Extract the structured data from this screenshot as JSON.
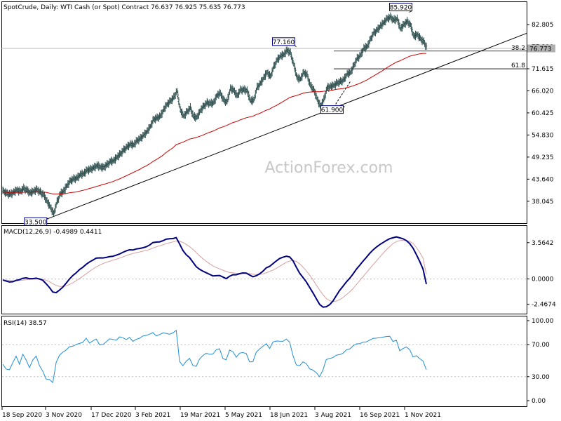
{
  "colors": {
    "price_bars": "#2f4f4f",
    "ma": "#cc0000",
    "macd": "#000080",
    "signal": "#d8a0a0",
    "rsi": "#1e8fd6",
    "grid": "#bdbdbd",
    "trendline": "#000000",
    "box_border": "#000080"
  },
  "chart_data": [
    {
      "type": "ohlc",
      "title": "SpotCrude, Daily:  WTI Cash (or Spot) Contract  76.637 76.925 75.635 76.773",
      "watermark": "ActionForex.com",
      "y_ticks": [
        "82.805",
        "77.210",
        "71.615",
        "66.020",
        "60.425",
        "54.830",
        "49.235",
        "43.640",
        "38.045"
      ],
      "y_tick_values": [
        82.805,
        77.21,
        71.615,
        66.02,
        60.425,
        54.83,
        49.235,
        43.64,
        38.045
      ],
      "ylim": [
        32.5,
        88.5
      ],
      "current_price": "76.773",
      "x_ticks": [
        "18 Sep 2020",
        "3 Nov 2020",
        "17 Dec 2020",
        "3 Feb 2021",
        "19 Mar 2021",
        "5 May 2021",
        "18 Jun 2021",
        "3 Aug 2021",
        "16 Sep 2021",
        "1 Nov 2021"
      ],
      "annotations": [
        {
          "text": "33.500",
          "date": "2020-11-02",
          "value": 33.5
        },
        {
          "text": "77.160",
          "date": "2021-07-06",
          "value": 77.16
        },
        {
          "text": "61.900",
          "date": "2021-08-23",
          "value": 61.9
        },
        {
          "text": "85.920",
          "date": "2021-10-26",
          "value": 85.92
        }
      ],
      "fibonacci": [
        {
          "label": "38.2",
          "value": 76.1
        },
        {
          "label": "61.8",
          "value": 71.6
        }
      ],
      "series": [
        {
          "name": "Close",
          "values": [
            40.6,
            40.0,
            39.8,
            40.3,
            40.9,
            40.5,
            41.3,
            40.8,
            40.1,
            40.6,
            41.0,
            40.3,
            39.7,
            38.0,
            36.6,
            34.9,
            37.8,
            39.9,
            40.6,
            42.0,
            43.2,
            43.7,
            43.9,
            44.8,
            45.0,
            45.9,
            46.1,
            46.5,
            47.1,
            46.7,
            46.6,
            47.3,
            48.1,
            48.3,
            49.2,
            50.0,
            51.0,
            51.8,
            52.5,
            52.3,
            53.4,
            53.9,
            54.8,
            55.7,
            57.0,
            58.8,
            59.1,
            59.6,
            61.2,
            62.6,
            63.4,
            64.3,
            66.0,
            61.1,
            59.6,
            60.7,
            61.7,
            59.4,
            59.3,
            61.0,
            62.1,
            63.0,
            62.8,
            63.0,
            64.9,
            65.4,
            63.6,
            63.2,
            66.6,
            66.2,
            64.7,
            66.2,
            66.3,
            66.1,
            63.5,
            63.6,
            66.9,
            67.9,
            69.3,
            70.7,
            69.6,
            72.1,
            73.8,
            74.8,
            75.2,
            76.3,
            75.6,
            72.7,
            69.3,
            69.0,
            70.7,
            70.0,
            67.3,
            66.3,
            64.0,
            62.1,
            63.7,
            66.8,
            67.1,
            67.4,
            68.0,
            68.3,
            68.8,
            70.3,
            70.6,
            72.4,
            74.2,
            75.0,
            76.8,
            77.2,
            79.1,
            80.7,
            81.4,
            82.4,
            83.3,
            84.3,
            84.7,
            83.9,
            84.3,
            81.7,
            82.8,
            83.6,
            82.7,
            79.8,
            80.3,
            79.2,
            78.4,
            76.77
          ]
        },
        {
          "name": "MA",
          "values": [
            40.4,
            40.3,
            40.3,
            40.3,
            40.3,
            40.3,
            40.3,
            40.4,
            40.4,
            40.4,
            40.5,
            40.4,
            40.4,
            40.3,
            40.1,
            39.9,
            39.9,
            39.9,
            39.9,
            40.0,
            40.2,
            40.3,
            40.4,
            40.6,
            40.8,
            41.0,
            41.3,
            41.5,
            41.8,
            42.0,
            42.3,
            42.5,
            42.8,
            43.0,
            43.4,
            43.7,
            44.1,
            44.5,
            44.9,
            45.3,
            45.7,
            46.1,
            46.6,
            47.0,
            47.5,
            48.1,
            48.6,
            49.1,
            49.7,
            50.4,
            51.0,
            51.6,
            52.4,
            52.7,
            53.0,
            53.4,
            53.8,
            54.0,
            54.2,
            54.5,
            54.8,
            55.2,
            55.5,
            55.8,
            56.2,
            56.6,
            56.9,
            57.2,
            57.6,
            58.0,
            58.2,
            58.6,
            58.9,
            59.2,
            59.4,
            59.6,
            60.0,
            60.3,
            60.7,
            61.1,
            61.4,
            61.9,
            62.3,
            62.8,
            63.3,
            63.8,
            64.3,
            64.6,
            64.8,
            65.1,
            65.4,
            65.6,
            65.7,
            65.8,
            65.8,
            65.8,
            65.9,
            66.0,
            66.1,
            66.2,
            66.4,
            66.5,
            66.6,
            66.8,
            67.0,
            67.3,
            67.6,
            67.9,
            68.3,
            68.7,
            69.2,
            69.7,
            70.2,
            70.7,
            71.2,
            71.8,
            72.3,
            72.8,
            73.3,
            73.6,
            74.0,
            74.4,
            74.8,
            75.0,
            75.2,
            75.4,
            75.5,
            75.5
          ]
        }
      ]
    },
    {
      "type": "line",
      "title": "MACD(12,26,9) -0.4989 0.4411",
      "y_ticks": [
        "3.5642",
        "0.0000",
        "-2.4674"
      ],
      "y_tick_values": [
        3.5642,
        0.0,
        -2.4674
      ],
      "ylim": [
        -3.4,
        5.2
      ],
      "series": [
        {
          "name": "MACD",
          "values": [
            -0.09,
            -0.21,
            -0.3,
            -0.27,
            -0.14,
            -0.07,
            0.07,
            0.11,
            0.03,
            0.03,
            0.08,
            0.0,
            -0.13,
            -0.47,
            -0.85,
            -1.28,
            -1.34,
            -1.09,
            -0.8,
            -0.41,
            0.0,
            0.34,
            0.6,
            0.92,
            1.15,
            1.44,
            1.67,
            1.85,
            2.04,
            2.07,
            2.06,
            2.11,
            2.19,
            2.22,
            2.33,
            2.45,
            2.61,
            2.75,
            2.86,
            2.84,
            2.94,
            2.99,
            3.06,
            3.16,
            3.33,
            3.57,
            3.62,
            3.64,
            3.75,
            3.9,
            3.94,
            3.96,
            4.05,
            3.43,
            2.8,
            2.37,
            2.1,
            1.65,
            1.21,
            0.95,
            0.76,
            0.61,
            0.45,
            0.3,
            0.32,
            0.34,
            0.19,
            0.03,
            0.27,
            0.42,
            0.41,
            0.52,
            0.59,
            0.58,
            0.39,
            0.22,
            0.32,
            0.5,
            0.76,
            1.09,
            1.24,
            1.5,
            1.77,
            2.01,
            2.13,
            2.23,
            2.16,
            1.79,
            1.16,
            0.57,
            0.15,
            -0.28,
            -0.82,
            -1.36,
            -1.94,
            -2.49,
            -2.76,
            -2.72,
            -2.52,
            -2.16,
            -1.63,
            -1.13,
            -0.72,
            -0.29,
            0.06,
            0.49,
            0.95,
            1.34,
            1.74,
            2.11,
            2.5,
            2.84,
            3.12,
            3.36,
            3.57,
            3.77,
            3.95,
            4.04,
            4.13,
            4.03,
            3.94,
            3.76,
            3.47,
            3.02,
            2.4,
            1.72,
            0.98,
            -0.5
          ]
        },
        {
          "name": "Signal",
          "values": [
            -0.09,
            -0.11,
            -0.15,
            -0.17,
            -0.17,
            -0.15,
            -0.11,
            -0.07,
            -0.05,
            -0.03,
            -0.01,
            -0.01,
            -0.04,
            -0.12,
            -0.26,
            -0.46,
            -0.64,
            -0.73,
            -0.74,
            -0.68,
            -0.54,
            -0.37,
            -0.17,
            0.05,
            0.27,
            0.51,
            0.75,
            0.97,
            1.18,
            1.36,
            1.5,
            1.62,
            1.74,
            1.84,
            1.94,
            2.05,
            2.16,
            2.29,
            2.41,
            2.5,
            2.58,
            2.65,
            2.72,
            2.8,
            2.9,
            3.03,
            3.15,
            3.25,
            3.35,
            3.46,
            3.55,
            3.63,
            3.71,
            3.7,
            3.59,
            3.4,
            3.18,
            2.9,
            2.59,
            2.27,
            1.98,
            1.73,
            1.5,
            1.29,
            1.12,
            0.99,
            0.86,
            0.73,
            0.63,
            0.6,
            0.56,
            0.55,
            0.54,
            0.54,
            0.53,
            0.46,
            0.43,
            0.44,
            0.51,
            0.6,
            0.74,
            0.86,
            1.04,
            1.24,
            1.44,
            1.64,
            1.76,
            1.81,
            1.72,
            1.49,
            1.17,
            0.79,
            0.38,
            -0.08,
            -0.6,
            -1.09,
            -1.55,
            -1.92,
            -2.13,
            -2.21,
            -2.17,
            -2.03,
            -1.82,
            -1.54,
            -1.27,
            -0.95,
            -0.55,
            -0.16,
            0.21,
            0.62,
            1.0,
            1.39,
            1.77,
            2.13,
            2.51,
            2.86,
            3.17,
            3.47,
            3.66,
            3.76,
            3.79,
            3.77,
            3.69,
            3.47,
            3.1,
            2.61,
            2.05,
            0.44
          ]
        }
      ]
    },
    {
      "type": "line",
      "title": "RSI(14) 38.57",
      "y_ticks": [
        "100.00",
        "70.00",
        "30.00",
        "0.00"
      ],
      "y_tick_values": [
        100,
        70,
        30,
        0
      ],
      "ylim": [
        0,
        100
      ],
      "levels": [
        70,
        30
      ],
      "series": [
        {
          "name": "RSI",
          "values": [
            45.6,
            39.4,
            38.7,
            47.6,
            55.6,
            45.4,
            58.1,
            50.9,
            41.3,
            50.9,
            55.6,
            43.8,
            36.6,
            27.0,
            26.3,
            22.6,
            47.8,
            56.8,
            60.6,
            63.4,
            67.5,
            68.2,
            70.1,
            71.6,
            72.9,
            78.1,
            72.0,
            74.7,
            77.2,
            69.9,
            70.2,
            73.4,
            77.3,
            76.6,
            75.4,
            79.7,
            78.7,
            76.3,
            79.1,
            74.0,
            76.7,
            78.1,
            80.9,
            81.6,
            83.1,
            85.1,
            81.0,
            82.5,
            84.7,
            84.1,
            83.1,
            84.7,
            87.9,
            49.0,
            43.7,
            49.4,
            52.9,
            43.9,
            43.0,
            52.1,
            56.5,
            59.3,
            57.9,
            58.3,
            63.6,
            64.9,
            52.5,
            51.1,
            63.3,
            61.2,
            54.3,
            59.4,
            60.2,
            58.9,
            48.3,
            48.8,
            60.6,
            64.6,
            68.1,
            71.2,
            65.3,
            73.3,
            74.6,
            74.3,
            74.2,
            77.0,
            73.2,
            56.4,
            44.7,
            43.7,
            48.4,
            46.4,
            39.8,
            38.2,
            34.9,
            30.0,
            38.6,
            51.4,
            52.7,
            53.9,
            56.8,
            57.5,
            59.3,
            63.4,
            64.5,
            68.4,
            71.0,
            71.2,
            73.0,
            73.4,
            75.7,
            77.8,
            78.2,
            78.6,
            79.5,
            80.2,
            80.5,
            74.0,
            75.5,
            62.4,
            65.2,
            67.0,
            63.8,
            54.7,
            56.1,
            52.5,
            49.6,
            38.57
          ]
        }
      ]
    }
  ]
}
